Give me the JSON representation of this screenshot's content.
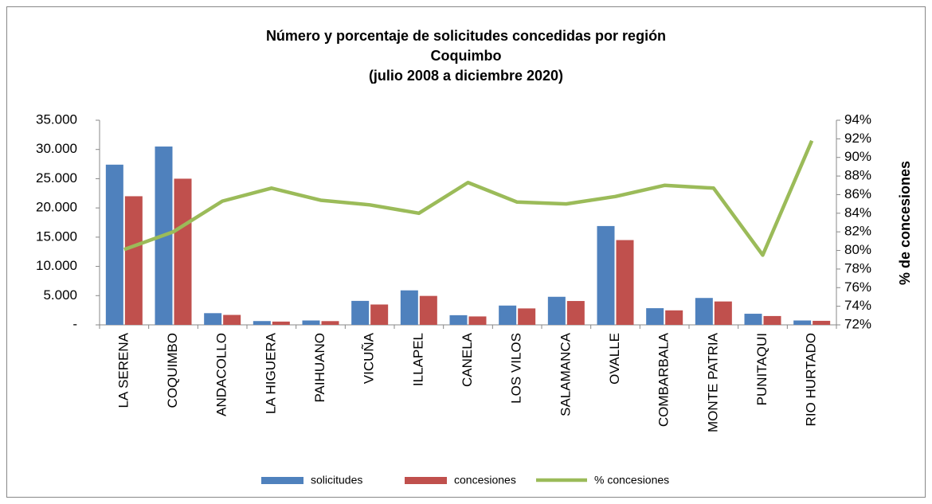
{
  "chart_data": {
    "type": "bar",
    "title": [
      "Número y porcentaje de solicitudes concedidas por región",
      "Coquimbo",
      "(julio 2008 a diciembre 2020)"
    ],
    "y2label": "% de concesiones",
    "categories": [
      "LA SERENA",
      "COQUIMBO",
      "ANDACOLLO",
      "LA HIGUERA",
      "PAIHUANO",
      "VICUÑA",
      "ILLAPEL",
      "CANELA",
      "LOS VILOS",
      "SALAMANCA",
      "OVALLE",
      "COMBARBALA",
      "MONTE PATRIA",
      "PUNITAQUI",
      "RIO HURTADO"
    ],
    "series": [
      {
        "name": "solicitudes",
        "color": "#4f81bd",
        "type": "bar",
        "values": [
          27400,
          30500,
          2000,
          650,
          750,
          4100,
          5900,
          1650,
          3300,
          4800,
          16900,
          2850,
          4600,
          1900,
          750
        ]
      },
      {
        "name": "concesiones",
        "color": "#c0504d",
        "type": "bar",
        "values": [
          22000,
          25000,
          1700,
          560,
          640,
          3480,
          4950,
          1440,
          2810,
          4080,
          14500,
          2480,
          4000,
          1510,
          690
        ]
      },
      {
        "name": "% concesiones",
        "color": "#9bbb59",
        "type": "line",
        "axis": "y2",
        "values": [
          80.1,
          82.0,
          85.3,
          86.7,
          85.4,
          84.9,
          84.0,
          87.3,
          85.2,
          85.0,
          85.8,
          87.0,
          86.7,
          79.5,
          91.8
        ]
      }
    ],
    "ylim": [
      0,
      35000
    ],
    "yticks": [
      {
        "value": 0,
        "label": "-"
      },
      {
        "value": 5000,
        "label": "5.000"
      },
      {
        "value": 10000,
        "label": "10.000"
      },
      {
        "value": 15000,
        "label": "15.000"
      },
      {
        "value": 20000,
        "label": "20.000"
      },
      {
        "value": 25000,
        "label": "25.000"
      },
      {
        "value": 30000,
        "label": "30.000"
      },
      {
        "value": 35000,
        "label": "35.000"
      }
    ],
    "y2lim": [
      72,
      94
    ],
    "y2ticks": [
      {
        "value": 72,
        "label": "72%"
      },
      {
        "value": 74,
        "label": "74%"
      },
      {
        "value": 76,
        "label": "76%"
      },
      {
        "value": 78,
        "label": "78%"
      },
      {
        "value": 80,
        "label": "80%"
      },
      {
        "value": 82,
        "label": "82%"
      },
      {
        "value": 84,
        "label": "84%"
      },
      {
        "value": 86,
        "label": "86%"
      },
      {
        "value": 88,
        "label": "88%"
      },
      {
        "value": 90,
        "label": "90%"
      },
      {
        "value": 92,
        "label": "92%"
      },
      {
        "value": 94,
        "label": "94%"
      }
    ],
    "grid": false,
    "legend": "bottom"
  }
}
